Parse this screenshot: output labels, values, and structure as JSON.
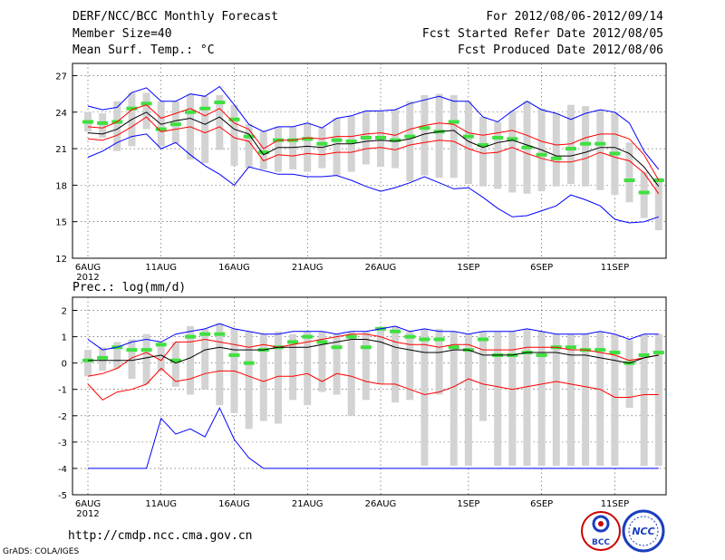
{
  "header": {
    "title": "DERF/NCC/BCC Monthly Forecast",
    "member_size": "Member Size=40",
    "variable": "Mean Surf. Temp.: °C",
    "period": "For 2012/08/06-2012/09/14",
    "fcst_started": "Fcst Started Refer Date 2012/08/05",
    "fcst_produced": "Fcst Produced Date 2012/08/06"
  },
  "footer": {
    "url": "http://cmdp.ncc.cma.gov.cn",
    "credit": "GrADS: COLA/IGES",
    "logo_bcc": "BCC",
    "logo_ncc": "NCC"
  },
  "colors": {
    "mean": "#000000",
    "spread": "#ff0000",
    "envelope": "#0000ff",
    "members_bar": "#d3d3d3",
    "member_mark": "#40e040"
  },
  "chart_data": [
    {
      "type": "line",
      "title": "Mean Surf. Temp.: °C",
      "ylim": [
        12,
        28
      ],
      "yticks": [
        12,
        15,
        18,
        21,
        24,
        27
      ],
      "x": [
        1,
        2,
        3,
        4,
        5,
        6,
        7,
        8,
        9,
        10,
        11,
        12,
        13,
        14,
        15,
        16,
        17,
        18,
        19,
        20,
        21,
        22,
        23,
        24,
        25,
        26,
        27,
        28,
        29,
        30,
        31,
        32,
        33,
        34,
        35,
        36,
        37,
        38,
        39,
        40
      ],
      "xticks": [
        {
          "day": 1,
          "label": "6AUG"
        },
        {
          "day": 6,
          "label": "11AUG"
        },
        {
          "day": 11,
          "label": "16AUG"
        },
        {
          "day": 16,
          "label": "21AUG"
        },
        {
          "day": 21,
          "label": "26AUG"
        },
        {
          "day": 27,
          "label": "1SEP"
        },
        {
          "day": 32,
          "label": "6SEP"
        },
        {
          "day": 37,
          "label": "11SEP"
        }
      ],
      "x_sublabel": "2012",
      "series": [
        {
          "name": "max",
          "values": [
            24.5,
            24.2,
            24.4,
            25.6,
            26.0,
            24.9,
            24.9,
            25.5,
            25.3,
            26.1,
            24.6,
            23.0,
            22.4,
            22.8,
            22.8,
            23.1,
            22.7,
            23.5,
            23.7,
            24.1,
            24.1,
            24.2,
            24.7,
            25.0,
            25.3,
            24.9,
            24.9,
            23.6,
            23.2,
            24.1,
            24.9,
            24.2,
            23.9,
            23.4,
            23.9,
            24.2,
            24.0,
            23.1,
            20.8,
            19.3
          ]
        },
        {
          "name": "mean_plus_sd",
          "values": [
            22.8,
            22.7,
            23.2,
            24.2,
            24.6,
            23.5,
            23.9,
            24.3,
            23.7,
            24.3,
            23.1,
            22.6,
            21.0,
            21.7,
            21.7,
            21.9,
            21.8,
            22.0,
            22.0,
            22.2,
            22.3,
            22.1,
            22.6,
            22.9,
            23.1,
            23.0,
            22.3,
            22.1,
            22.3,
            22.5,
            22.1,
            21.6,
            21.3,
            21.4,
            21.9,
            22.2,
            22.2,
            21.8,
            20.5,
            18.4
          ]
        },
        {
          "name": "mean",
          "values": [
            22.3,
            22.2,
            22.6,
            23.4,
            24.0,
            23.0,
            23.3,
            23.5,
            23.0,
            23.6,
            22.6,
            22.2,
            20.5,
            21.1,
            21.1,
            21.2,
            21.1,
            21.4,
            21.4,
            21.6,
            21.7,
            21.6,
            21.8,
            22.2,
            22.4,
            22.5,
            21.6,
            21.1,
            21.5,
            21.7,
            21.3,
            20.9,
            20.4,
            20.4,
            20.7,
            21.1,
            21.1,
            20.6,
            19.5,
            17.9
          ]
        },
        {
          "name": "mean_minus_sd",
          "values": [
            21.8,
            21.7,
            22.1,
            22.8,
            23.6,
            22.4,
            22.6,
            22.8,
            22.3,
            22.8,
            21.9,
            21.6,
            20.0,
            20.5,
            20.4,
            20.6,
            20.5,
            20.7,
            20.7,
            21.0,
            21.1,
            20.9,
            21.3,
            21.5,
            21.7,
            21.6,
            21.0,
            20.6,
            20.7,
            21.1,
            20.6,
            20.2,
            19.9,
            19.9,
            20.2,
            20.7,
            20.3,
            20.0,
            19.0,
            17.3
          ]
        },
        {
          "name": "min",
          "values": [
            20.3,
            20.8,
            21.5,
            22.0,
            22.2,
            21.0,
            21.5,
            20.5,
            19.6,
            18.9,
            18.0,
            19.5,
            19.2,
            18.9,
            18.9,
            18.7,
            18.7,
            18.8,
            18.4,
            17.9,
            17.5,
            17.8,
            18.2,
            18.7,
            18.2,
            17.7,
            17.8,
            17.0,
            16.1,
            15.4,
            15.5,
            15.9,
            16.3,
            17.2,
            16.8,
            16.3,
            15.2,
            14.9,
            15.0,
            15.4
          ]
        }
      ],
      "members_range": [
        [
          22.4,
          24.0
        ],
        [
          21.9,
          23.9
        ],
        [
          20.8,
          24.9
        ],
        [
          21.2,
          25.6
        ],
        [
          22.6,
          25.6
        ],
        [
          21.2,
          24.9
        ],
        [
          21.4,
          24.9
        ],
        [
          20.1,
          25.5
        ],
        [
          19.8,
          25.3
        ],
        [
          20.9,
          25.4
        ],
        [
          19.6,
          24.6
        ],
        [
          19.4,
          23.0
        ],
        [
          19.3,
          22.4
        ],
        [
          19.1,
          22.8
        ],
        [
          19.3,
          22.8
        ],
        [
          19.1,
          23.1
        ],
        [
          19.4,
          22.7
        ],
        [
          18.8,
          23.5
        ],
        [
          19.1,
          23.7
        ],
        [
          19.7,
          24.1
        ],
        [
          19.5,
          24.1
        ],
        [
          19.4,
          24.2
        ],
        [
          18.3,
          24.9
        ],
        [
          18.8,
          25.4
        ],
        [
          18.6,
          25.5
        ],
        [
          18.6,
          25.4
        ],
        [
          18.1,
          24.9
        ],
        [
          17.9,
          23.6
        ],
        [
          17.7,
          23.2
        ],
        [
          17.4,
          24.1
        ],
        [
          17.3,
          24.9
        ],
        [
          17.5,
          24.3
        ],
        [
          17.9,
          23.9
        ],
        [
          18.1,
          24.6
        ],
        [
          17.9,
          24.5
        ],
        [
          17.6,
          24.2
        ],
        [
          17.2,
          24.0
        ],
        [
          16.6,
          21.5
        ],
        [
          15.3,
          19.1
        ],
        [
          14.3,
          18.6
        ]
      ],
      "member_mark": [
        23.2,
        23.1,
        23.2,
        24.3,
        24.7,
        22.6,
        23.0,
        24.0,
        24.3,
        24.8,
        23.4,
        22.0,
        20.7,
        21.7,
        21.7,
        21.8,
        21.4,
        21.7,
        21.6,
        21.9,
        21.9,
        21.7,
        22.0,
        22.7,
        22.4,
        23.2,
        22.0,
        21.3,
        21.9,
        21.8,
        21.1,
        20.5,
        20.2,
        21.0,
        21.4,
        21.4,
        20.6,
        18.4,
        17.4,
        18.4
      ]
    },
    {
      "type": "line",
      "title": "Prec.: log(mm/d)",
      "ylim": [
        -5,
        2.5
      ],
      "yticks": [
        -5,
        -4,
        -3,
        -2,
        -1,
        0,
        1,
        2
      ],
      "x": [
        1,
        2,
        3,
        4,
        5,
        6,
        7,
        8,
        9,
        10,
        11,
        12,
        13,
        14,
        15,
        16,
        17,
        18,
        19,
        20,
        21,
        22,
        23,
        24,
        25,
        26,
        27,
        28,
        29,
        30,
        31,
        32,
        33,
        34,
        35,
        36,
        37,
        38,
        39,
        40
      ],
      "xticks": [
        {
          "day": 1,
          "label": "6AUG"
        },
        {
          "day": 6,
          "label": "11AUG"
        },
        {
          "day": 11,
          "label": "16AUG"
        },
        {
          "day": 16,
          "label": "21AUG"
        },
        {
          "day": 21,
          "label": "26AUG"
        },
        {
          "day": 27,
          "label": "1SEP"
        },
        {
          "day": 32,
          "label": "6SEP"
        },
        {
          "day": 37,
          "label": "11SEP"
        }
      ],
      "x_sublabel": "2012",
      "series": [
        {
          "name": "max",
          "values": [
            0.9,
            0.5,
            0.6,
            0.8,
            0.9,
            0.8,
            1.1,
            1.2,
            1.3,
            1.5,
            1.3,
            1.2,
            1.1,
            1.1,
            1.2,
            1.2,
            1.2,
            1.1,
            1.2,
            1.2,
            1.3,
            1.4,
            1.2,
            1.3,
            1.2,
            1.2,
            1.1,
            1.2,
            1.2,
            1.2,
            1.3,
            1.2,
            1.1,
            1.1,
            1.1,
            1.2,
            1.1,
            0.9,
            1.1,
            1.1
          ]
        },
        {
          "name": "mean_plus_sd",
          "values": [
            -0.5,
            -0.4,
            -0.2,
            0.2,
            0.4,
            0.1,
            0.8,
            0.8,
            0.9,
            0.8,
            0.7,
            0.6,
            0.7,
            0.6,
            0.7,
            0.8,
            0.9,
            1.0,
            1.1,
            1.1,
            1.0,
            0.8,
            0.7,
            0.7,
            0.6,
            0.7,
            0.7,
            0.5,
            0.5,
            0.5,
            0.6,
            0.6,
            0.6,
            0.5,
            0.5,
            0.4,
            0.3,
            0.1,
            0.2,
            0.3
          ]
        },
        {
          "name": "mean",
          "values": [
            0.1,
            0.1,
            0.1,
            0.1,
            0.2,
            0.3,
            0.0,
            0.2,
            0.5,
            0.6,
            0.5,
            0.5,
            0.5,
            0.6,
            0.6,
            0.6,
            0.7,
            0.8,
            0.9,
            0.9,
            0.8,
            0.6,
            0.5,
            0.4,
            0.4,
            0.5,
            0.5,
            0.3,
            0.3,
            0.3,
            0.4,
            0.4,
            0.4,
            0.3,
            0.3,
            0.2,
            0.1,
            0.0,
            0.2,
            0.3
          ]
        },
        {
          "name": "mean_minus_sd",
          "values": [
            -0.8,
            -1.4,
            -1.1,
            -1.0,
            -0.8,
            -0.2,
            -0.7,
            -0.6,
            -0.4,
            -0.3,
            -0.3,
            -0.5,
            -0.7,
            -0.5,
            -0.5,
            -0.4,
            -0.7,
            -0.4,
            -0.5,
            -0.7,
            -0.8,
            -0.8,
            -1.0,
            -1.2,
            -1.1,
            -0.9,
            -0.6,
            -0.8,
            -0.9,
            -1.0,
            -0.9,
            -0.8,
            -0.7,
            -0.8,
            -0.9,
            -1.0,
            -1.3,
            -1.3,
            -1.2,
            -1.2
          ]
        },
        {
          "name": "min",
          "values": [
            -4,
            -4,
            -4,
            -4,
            -4,
            -2.1,
            -2.7,
            -2.5,
            -2.8,
            -1.7,
            -2.9,
            -3.6,
            -4,
            -4,
            -4,
            -4,
            -4,
            -4,
            -4,
            -4,
            -4,
            -4,
            -4,
            -4,
            -4,
            -4,
            -4,
            -4,
            -4,
            -4,
            -4,
            -4,
            -4,
            -4,
            -4,
            -4,
            -4,
            -4,
            -4,
            -4
          ]
        }
      ],
      "members_range": [
        [
          -0.5,
          0.5
        ],
        [
          -0.3,
          0.6
        ],
        [
          -0.2,
          0.8
        ],
        [
          -0.6,
          0.9
        ],
        [
          -0.8,
          1.1
        ],
        [
          -0.3,
          0.8
        ],
        [
          -0.9,
          0.8
        ],
        [
          -1.2,
          1.4
        ],
        [
          -1.0,
          1.3
        ],
        [
          -1.6,
          1.5
        ],
        [
          -1.9,
          1.3
        ],
        [
          -2.5,
          1.2
        ],
        [
          -2.2,
          1.1
        ],
        [
          -2.3,
          1.2
        ],
        [
          -1.4,
          1.1
        ],
        [
          -1.6,
          1.2
        ],
        [
          -1.1,
          1.2
        ],
        [
          -1.2,
          1.1
        ],
        [
          -2.0,
          1.2
        ],
        [
          -1.4,
          1.2
        ],
        [
          -0.8,
          1.3
        ],
        [
          -1.5,
          1.4
        ],
        [
          -1.4,
          1.2
        ],
        [
          -3.9,
          1.3
        ],
        [
          -1.2,
          1.3
        ],
        [
          -3.9,
          1.2
        ],
        [
          -3.9,
          1.1
        ],
        [
          -2.2,
          1.2
        ],
        [
          -3.9,
          1.2
        ],
        [
          -3.9,
          1.2
        ],
        [
          -3.9,
          1.3
        ],
        [
          -3.9,
          1.2
        ],
        [
          -3.9,
          1.1
        ],
        [
          -3.9,
          1.1
        ],
        [
          -3.9,
          1.1
        ],
        [
          -3.9,
          1.2
        ],
        [
          -3.9,
          1.1
        ],
        [
          -1.7,
          0.9
        ],
        [
          -3.9,
          1.1
        ],
        [
          -3.9,
          1.1
        ]
      ],
      "member_mark": [
        0.1,
        0.2,
        0.6,
        0.5,
        0.5,
        0.7,
        0.1,
        1.0,
        1.1,
        1.1,
        0.3,
        0.0,
        0.5,
        0.6,
        0.8,
        1.0,
        0.8,
        0.6,
        1.0,
        0.6,
        1.3,
        1.2,
        1.0,
        0.9,
        0.9,
        0.6,
        0.5,
        0.9,
        0.3,
        0.3,
        0.4,
        0.3,
        0.6,
        0.6,
        0.5,
        0.5,
        0.4,
        0.0,
        0.3,
        0.4
      ]
    }
  ]
}
